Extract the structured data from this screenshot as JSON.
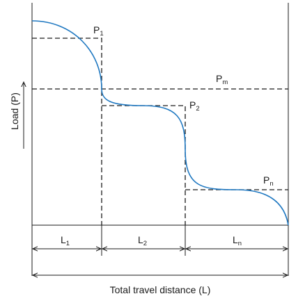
{
  "diagram": {
    "y_axis_label": "Load (P)",
    "x_axis_label": "Total travel distance (L)",
    "load_labels": {
      "p1": {
        "base": "P",
        "sub": "1"
      },
      "p2": {
        "base": "P",
        "sub": "2"
      },
      "pn": {
        "base": "P",
        "sub": "n"
      },
      "pm": {
        "base": "P",
        "sub": "m"
      }
    },
    "distance_labels": {
      "l1": {
        "base": "L",
        "sub": "1"
      },
      "l2": {
        "base": "L",
        "sub": "2"
      },
      "ln": {
        "base": "L",
        "sub": "n"
      }
    },
    "colors": {
      "curve": "#1f78c1",
      "lines": "#1a1a1a"
    }
  }
}
